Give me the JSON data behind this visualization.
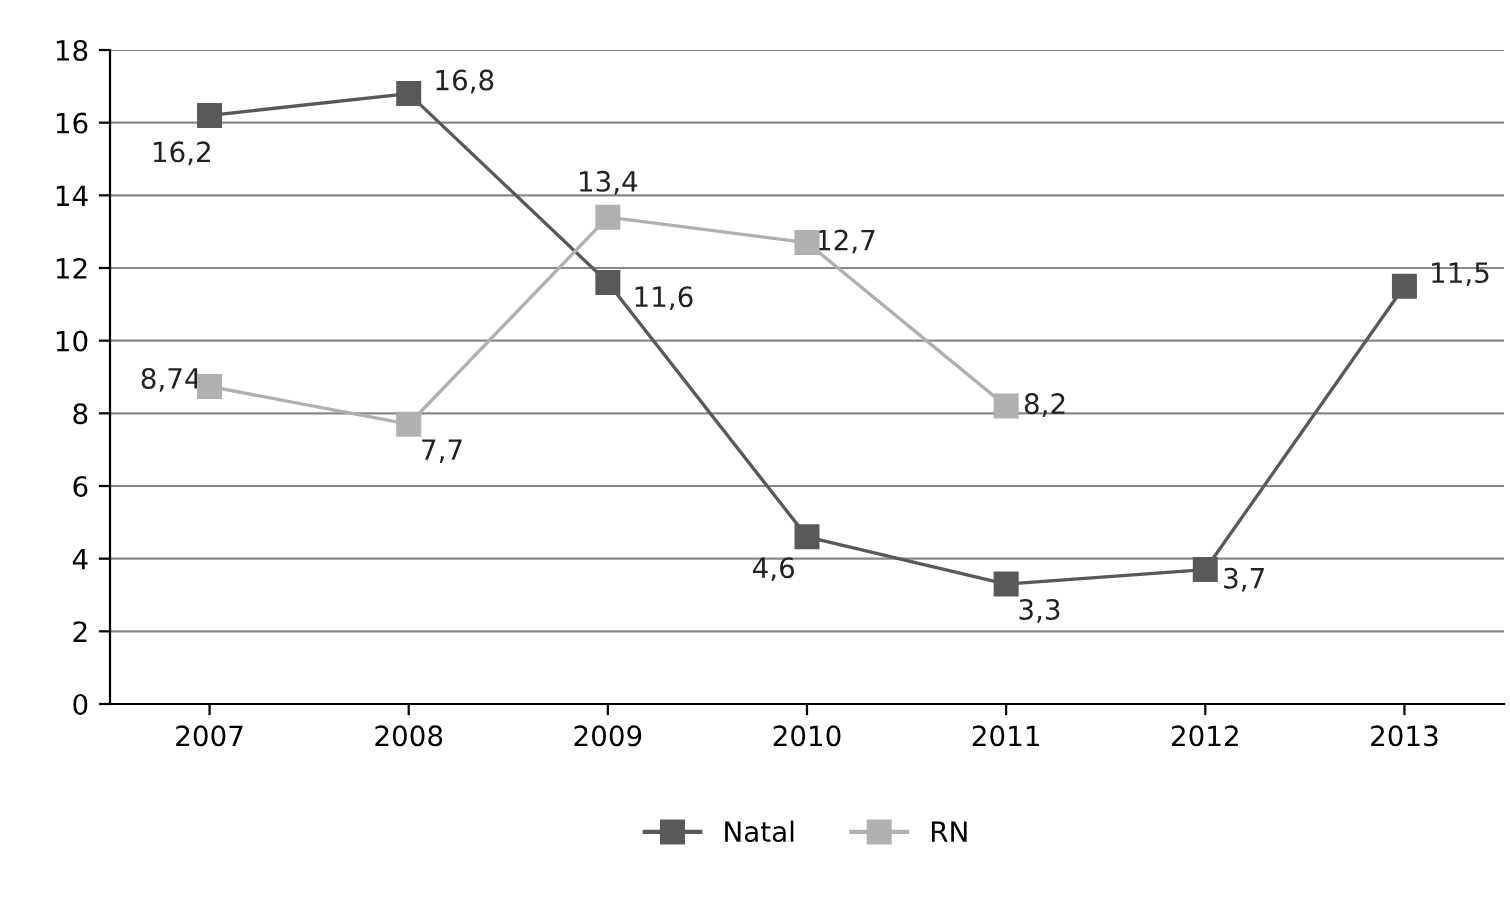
{
  "chart_data": {
    "type": "line",
    "categories": [
      "2007",
      "2008",
      "2009",
      "2010",
      "2011",
      "2012",
      "2013"
    ],
    "series": [
      {
        "name": "Natal",
        "color": "#595959",
        "values": [
          16.2,
          16.8,
          11.6,
          4.6,
          3.3,
          3.7,
          11.5
        ],
        "value_labels": [
          "16,2",
          "16,8",
          "11,6",
          "4,6",
          "3,3",
          "3,7",
          "11,5"
        ]
      },
      {
        "name": "RN",
        "color": "#b0b0b0",
        "values": [
          8.74,
          7.7,
          13.4,
          12.7,
          8.2,
          null,
          null
        ],
        "value_labels": [
          "8,74",
          "7,7",
          "13,4",
          "12,7",
          "8,2",
          null,
          null
        ]
      }
    ],
    "ylim": [
      0,
      18
    ],
    "yticks": [
      0,
      2,
      4,
      6,
      8,
      10,
      12,
      14,
      16,
      18
    ],
    "grid": "y",
    "legend": "bottom",
    "marker": "square",
    "line_style": "solid"
  }
}
